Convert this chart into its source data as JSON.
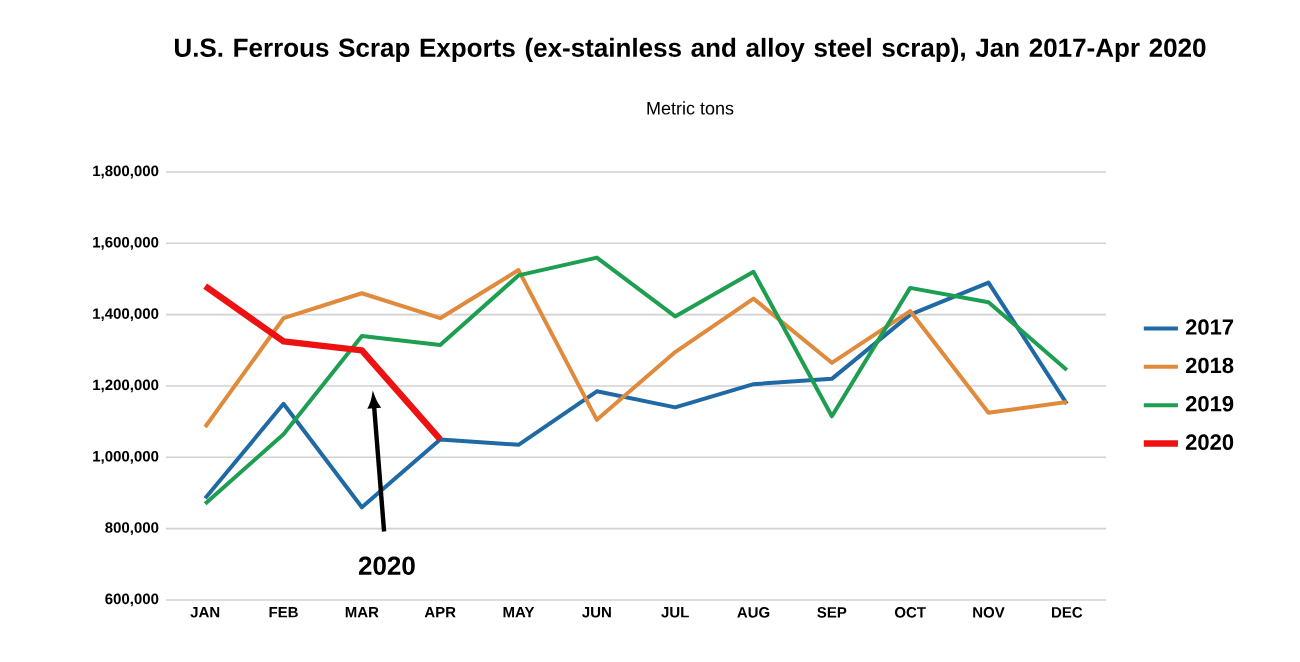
{
  "chart_data": {
    "type": "line",
    "title": "U.S. Ferrous Scrap Exports (ex-stainless and alloy steel scrap), Jan 2017-Apr 2020",
    "subtitle": "Metric tons",
    "categories": [
      "JAN",
      "FEB",
      "MAR",
      "APR",
      "MAY",
      "JUN",
      "JUL",
      "AUG",
      "SEP",
      "OCT",
      "NOV",
      "DEC"
    ],
    "series": [
      {
        "name": "2017",
        "color": "#1f6aa5",
        "values": [
          885000,
          1150000,
          860000,
          1050000,
          1035000,
          1185000,
          1140000,
          1205000,
          1220000,
          1400000,
          1490000,
          1150000
        ]
      },
      {
        "name": "2018",
        "color": "#e08a3c",
        "values": [
          1085000,
          1390000,
          1460000,
          1390000,
          1525000,
          1105000,
          1295000,
          1445000,
          1265000,
          1410000,
          1125000,
          1155000
        ]
      },
      {
        "name": "2019",
        "color": "#1e9e50",
        "values": [
          870000,
          1065000,
          1340000,
          1315000,
          1510000,
          1560000,
          1395000,
          1520000,
          1115000,
          1475000,
          1435000,
          1245000
        ]
      },
      {
        "name": "2020",
        "color": "#ee1111",
        "values": [
          1480000,
          1325000,
          1300000,
          1050000,
          null,
          null,
          null,
          null,
          null,
          null,
          null,
          null
        ]
      }
    ],
    "annotations": [
      "2020"
    ],
    "ylim": [
      600000,
      1800000
    ],
    "yticks": [
      {
        "value": 600000,
        "label": "600,000"
      },
      {
        "value": 800000,
        "label": "800,000"
      },
      {
        "value": 1000000,
        "label": "1,000,000"
      },
      {
        "value": 1200000,
        "label": "1,200,000"
      },
      {
        "value": 1400000,
        "label": "1,400,000"
      },
      {
        "value": 1600000,
        "label": "1,600,000"
      },
      {
        "value": 1800000,
        "label": "1,800,000"
      }
    ],
    "grid": "y",
    "legend": "right",
    "marker": "none",
    "line_style": "solid"
  }
}
